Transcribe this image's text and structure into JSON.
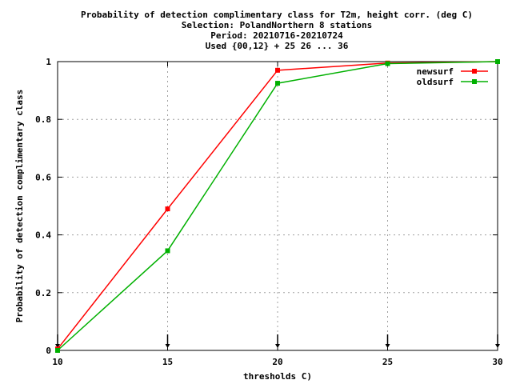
{
  "chart_data": {
    "type": "line",
    "title_lines": [
      "Probability of detection complimentary class  for T2m, height corr. (deg C)",
      "Selection: PolandNorthern      8 stations",
      "Period: 20210716-20210724",
      "Used {00,12} + 25 26 ... 36"
    ],
    "xlabel": "thresholds C)",
    "ylabel": "Probability of detection complimentary class",
    "xlim": [
      10,
      30
    ],
    "ylim": [
      0,
      1
    ],
    "x_ticks": [
      10,
      15,
      20,
      25,
      30
    ],
    "x_tick_labels": [
      "10",
      "15",
      "20",
      "25",
      "30"
    ],
    "y_ticks": [
      0,
      0.2,
      0.4,
      0.6,
      0.8,
      1
    ],
    "y_tick_labels": [
      "0",
      "0.2",
      "0.4",
      "0.6",
      "0.8",
      "1"
    ],
    "grid": true,
    "legend_position": "top-right",
    "series": [
      {
        "name": "newsurf",
        "color": "#ff0000",
        "x": [
          10,
          15,
          20,
          25,
          30
        ],
        "values": [
          0.005,
          0.49,
          0.97,
          0.995,
          1.0
        ]
      },
      {
        "name": "oldsurf",
        "color": "#00b000",
        "x": [
          10,
          15,
          20,
          25,
          30
        ],
        "values": [
          0.0,
          0.345,
          0.925,
          0.993,
          1.0
        ]
      }
    ],
    "arrow_markers_x": [
      10,
      15,
      20,
      25,
      30
    ]
  }
}
